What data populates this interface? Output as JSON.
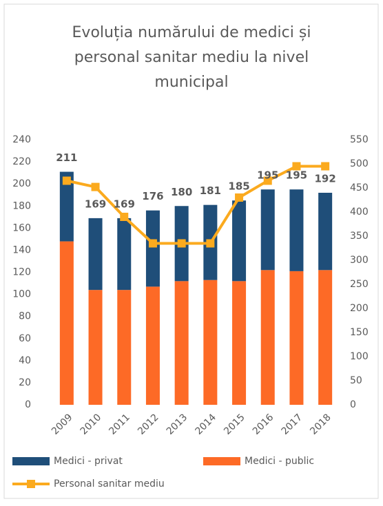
{
  "chart_data": {
    "type": "bar-line",
    "title": "Evoluția numărului de medici și personal sanitar mediu la nivel municipal",
    "title_lines": [
      "Evoluția numărului de medici și",
      "personal sanitar mediu la nivel",
      "municipal"
    ],
    "categories": [
      "2009",
      "2010",
      "2011",
      "2012",
      "2013",
      "2014",
      "2015",
      "2016",
      "2017",
      "2018"
    ],
    "series": [
      {
        "name": "Medici - public",
        "color": "#fd6a26",
        "kind": "bar",
        "values": [
          148,
          104,
          104,
          107,
          112,
          113,
          112,
          122,
          121,
          122
        ]
      },
      {
        "name": "Medici - privat",
        "color": "#1f4e79",
        "kind": "bar",
        "values": [
          63,
          65,
          65,
          69,
          68,
          68,
          73,
          73,
          74,
          70
        ]
      },
      {
        "name": "Personal sanitar mediu",
        "color": "#fbaa1e",
        "kind": "line",
        "axis": "y2",
        "values": [
          465,
          452,
          390,
          335,
          335,
          335,
          430,
          465,
          495,
          495
        ]
      }
    ],
    "total_labels": [
      211,
      169,
      169,
      176,
      180,
      181,
      185,
      195,
      195,
      192
    ],
    "ylim": [
      0,
      240
    ],
    "yticks": [
      0,
      20,
      40,
      60,
      80,
      100,
      120,
      140,
      160,
      180,
      200,
      220,
      240
    ],
    "y2lim": [
      0,
      550
    ],
    "y2ticks": [
      0,
      50,
      100,
      150,
      200,
      250,
      300,
      350,
      400,
      450,
      500,
      550
    ],
    "grid": false
  }
}
